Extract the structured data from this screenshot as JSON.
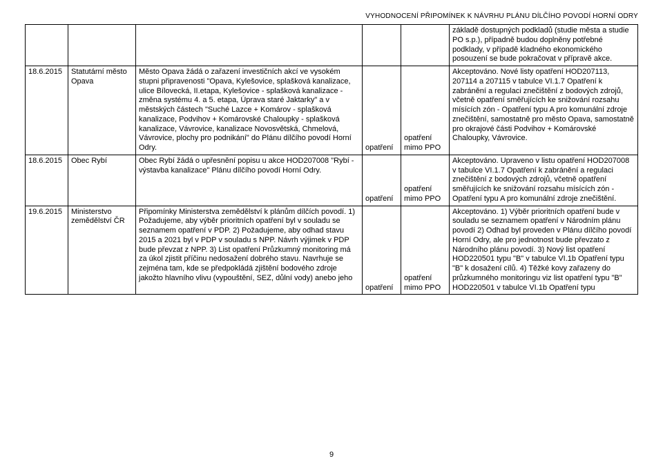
{
  "header": "VYHODNOCENÍ PŘIPOMÍNEK K NÁVRHU PLÁNU DÍLČÍHO POVODÍ HORNÍ ODRY",
  "page_number": "9",
  "rows": [
    {
      "date": "",
      "submitter": "",
      "comment": "",
      "col4": "",
      "col5": "",
      "response": "základě dostupných podkladů (studie města a studie PO s.p.), případně budou doplněny potřebné podklady, v případě kladného ekonomického posouzení se bude pokračovat v přípravě akce."
    },
    {
      "date": "18.6.2015",
      "submitter": "Statutární město Opava",
      "comment": "Město Opava žádá o zařazení investičních akcí ve vysokém stupni připravenosti \"Opava, Kylešovice, splašková kanalizace, ulice Bílovecká, II.etapa, Kylešovice - splašková kanalizace - změna systému 4. a 5. etapa, Úprava staré Jaktarky\" a v městských částech \"Suché Lazce + Komárov - splašková kanalizace, Podvihov + Komárovské Chaloupky - splašková kanalizace, Vávrovice, kanalizace Novosvětská, Chmelová, Vávrovice, plochy pro podnikání\" do Plánu dílčího povodí Horní Odry.",
      "col4": "opatření",
      "col5": "opatření mimo PPO",
      "response": "Akceptováno. Nové listy opatření HOD207113, 207114  a 207115 v tabulce VI.1.7 Opatření k zabránění a regulaci znečištění z bodových zdrojů, včetně opatření směřujících ke snižování rozsahu mísících zón  - Opatření typu A pro komunální zdroje znečištění, samostatně pro město Opava, samostatně pro okrajové části Podvihov + Komárovské Chaloupky, Vávrovice."
    },
    {
      "date": "18.6.2015",
      "submitter": "Obec Rybí",
      "comment": "Obec Rybí žádá o upřesnění popisu u akce HOD207008 \"Rybí - výstavba kanalizace\" Plánu dílčího povodí Horní Odry.",
      "col4": "opatření",
      "col5": "opatření mimo PPO",
      "response": "Akceptováno. Upraveno v listu opatření HOD207008 v tabulce VI.1.7 Opatření k zabránění a regulaci znečištění z bodových zdrojů, včetně opatření směřujících ke snižování rozsahu mísících zón - Opatření typu A pro komunální zdroje znečištění."
    },
    {
      "date": "19.6.2015",
      "submitter": "Ministerstvo zemědělství ČR",
      "comment": "Připomínky Ministerstva zemědělství k plánům dílčích povodí. 1) Požadujeme, aby výběr prioritních opatření byl v souladu se seznamem opatření v PDP. 2) Požadujeme, aby odhad stavu 2015 a 2021 byl v PDP v souladu s NPP. Návrh výjimek v PDP bude převzat z NPP. 3) List opatření Průzkumný monitoring má za úkol zjistit příčinu nedosažení dobrého stavu. Navrhuje se zejména tam, kde se předpokládá zjištění bodového zdroje jakožto hlavního vlivu (vypouštění, SEZ, důlní vody) anebo jeho",
      "col4": "opatření",
      "col5": "opatření mimo PPO",
      "response": "Akceptováno. 1) Výběr prioritních opatření bude v souladu se seznamem opatření v Národním plánu povodí 2) Odhad byl proveden  v Plánu dílčího povodí Horní Odry, ale pro jednotnost bude převzato z Národního plánu povodí. 3) Nový list opatření HOD220501 typu \"B\" v tabulce VI.1b Opatření typu \"B\" k dosažení cílů. 4) Těžké kovy zařazeny do průzkumného monitoringu viz list opatření typu \"B\" HOD220501 v tabulce VI.1b Opatření typu"
    }
  ]
}
